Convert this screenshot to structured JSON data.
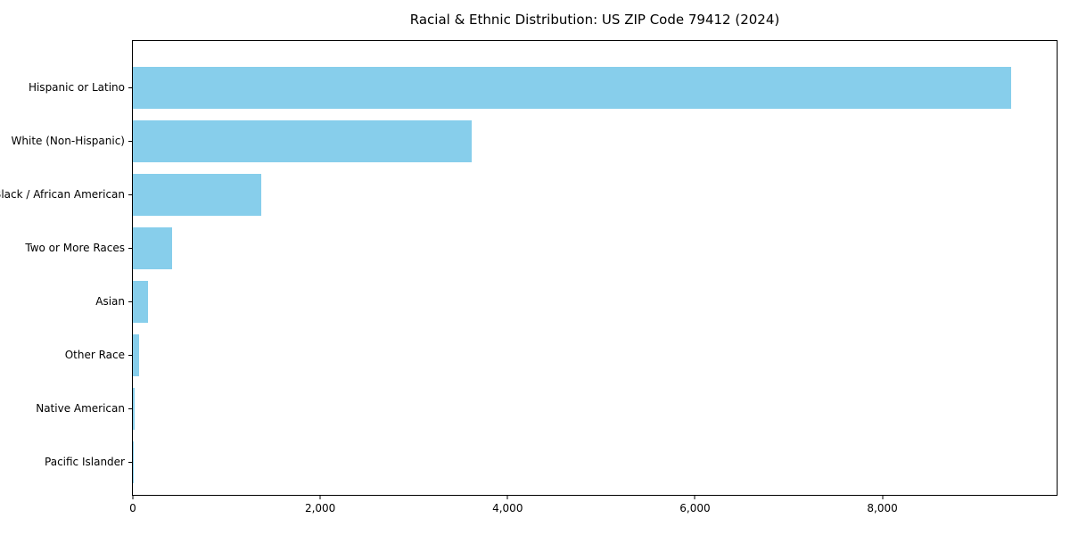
{
  "chart": {
    "title": "Racial & Ethnic Distribution: US ZIP Code 79412 (2024)"
  },
  "chart_data": {
    "type": "bar",
    "orientation": "horizontal",
    "title": "Racial & Ethnic Distribution: US ZIP Code 79412 (2024)",
    "categories": [
      "Hispanic or Latino",
      "White (Non-Hispanic)",
      "Black / African American",
      "Two or More Races",
      "Asian",
      "Other Race",
      "Native American",
      "Pacific Islander"
    ],
    "values": [
      9370,
      3620,
      1375,
      420,
      163,
      68,
      20,
      8
    ],
    "xlabel": "",
    "ylabel": "",
    "xlim": [
      0,
      9860
    ],
    "x_ticks": [
      0,
      2000,
      4000,
      6000,
      8000
    ],
    "x_tick_labels": [
      "0",
      "2,000",
      "4,000",
      "6,000",
      "8,000"
    ],
    "bar_color": "#87CEEB",
    "text_color": "#000000",
    "grid": false,
    "legend": false
  }
}
